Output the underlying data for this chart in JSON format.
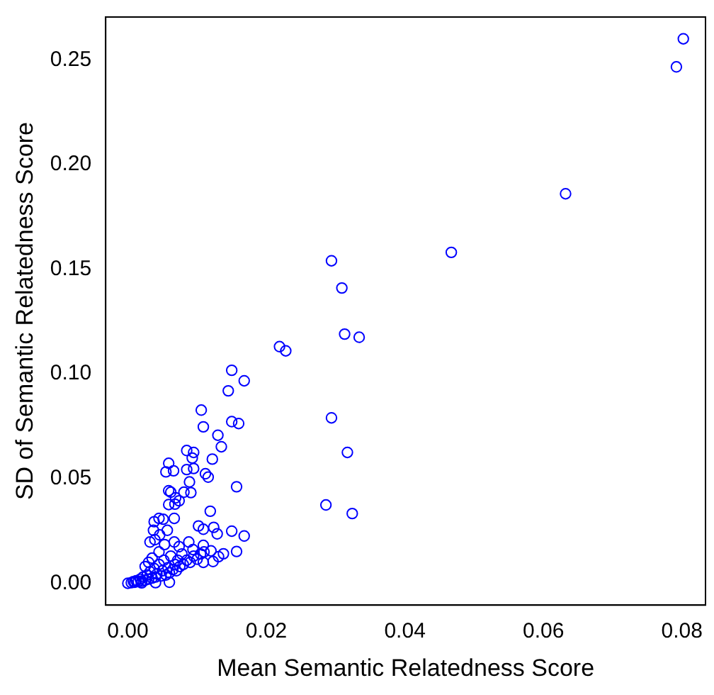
{
  "chart_data": {
    "type": "scatter",
    "xlabel": "Mean Semantic Relatedness Score",
    "ylabel": "SD of Semantic Relatedness Score",
    "marker": "circle",
    "xlim": [
      -0.0032,
      0.0834
    ],
    "ylim": [
      -0.0104,
      0.2704
    ],
    "xticks": [
      {
        "value": 0,
        "label": "0.00"
      },
      {
        "value": 0.02,
        "label": "0.02"
      },
      {
        "value": 0.04,
        "label": "0.04"
      },
      {
        "value": 0.06,
        "label": "0.06"
      },
      {
        "value": 0.08,
        "label": "0.08"
      }
    ],
    "yticks": [
      {
        "value": 0,
        "label": "0.00"
      },
      {
        "value": 0.05,
        "label": "0.05"
      },
      {
        "value": 0.1,
        "label": "0.10"
      },
      {
        "value": 0.15,
        "label": "0.15"
      },
      {
        "value": 0.2,
        "label": "0.20"
      },
      {
        "value": 0.25,
        "label": "0.25"
      }
    ],
    "series": [
      {
        "color": "#0000ff",
        "x": [
          0.0802,
          0.0792,
          0.0632,
          0.0467,
          0.0294,
          0.0309,
          0.0219,
          0.0228,
          0.0313,
          0.0334,
          0.0294,
          0.0317,
          0.0286,
          0.0324,
          0.015,
          0.0168,
          0.0145,
          0.0106,
          0.0109,
          0.015,
          0.016,
          0.013,
          0.0135,
          0.0085,
          0.0095,
          0.0093,
          0.0122,
          0.0059,
          0.0055,
          0.0066,
          0.0085,
          0.0095,
          0.0112,
          0.0116,
          0.0089,
          0.0157,
          0.0059,
          0.0062,
          0.0081,
          0.0091,
          0.0069,
          0.0074,
          0.0059,
          0.0068,
          0.0119,
          0.0045,
          0.0038,
          0.0051,
          0.0067,
          0.0102,
          0.0109,
          0.0124,
          0.0129,
          0.015,
          0.0168,
          0.0157,
          0.0138,
          0.0131,
          0.0123,
          0.0109,
          0.0109,
          0.0088,
          0.0094,
          0.0037,
          0.0046,
          0.0057,
          0.0032,
          0.0039,
          0.0053,
          0.0067,
          0.0074,
          0.0,
          0.0005,
          0.0008,
          0.001,
          0.0012,
          0.0015,
          0.0018,
          0.002,
          0.0022,
          0.0025,
          0.0028,
          0.003,
          0.0032,
          0.0035,
          0.0038,
          0.004,
          0.0042,
          0.0045,
          0.0048,
          0.005,
          0.0052,
          0.0055,
          0.0058,
          0.006,
          0.0062,
          0.0065,
          0.0068,
          0.007,
          0.0072,
          0.0075,
          0.0078,
          0.008,
          0.0085,
          0.009,
          0.0095,
          0.01,
          0.0105,
          0.006,
          0.004,
          0.002,
          0.003,
          0.0025,
          0.0035,
          0.0045,
          0.011,
          0.012
        ],
        "values": [
          0.26,
          0.2466,
          0.186,
          0.158,
          0.154,
          0.141,
          0.113,
          0.111,
          0.119,
          0.1175,
          0.079,
          0.0625,
          0.0374,
          0.0333,
          0.1017,
          0.0967,
          0.0919,
          0.0827,
          0.0747,
          0.0772,
          0.0763,
          0.0707,
          0.0652,
          0.0634,
          0.0625,
          0.0598,
          0.0593,
          0.0573,
          0.0532,
          0.0537,
          0.0543,
          0.0548,
          0.0523,
          0.0507,
          0.0484,
          0.0461,
          0.0442,
          0.0435,
          0.0435,
          0.0433,
          0.0408,
          0.0394,
          0.0376,
          0.0378,
          0.0344,
          0.031,
          0.0294,
          0.0306,
          0.031,
          0.0274,
          0.0258,
          0.0267,
          0.0236,
          0.0249,
          0.0226,
          0.0152,
          0.0141,
          0.0127,
          0.0104,
          0.01,
          0.0181,
          0.0197,
          0.0161,
          0.0253,
          0.0231,
          0.0253,
          0.0197,
          0.0208,
          0.0185,
          0.0197,
          0.0175,
          0.0,
          0.0003,
          0.0008,
          0.0005,
          0.0012,
          0.0008,
          0.002,
          0.001,
          0.003,
          0.0015,
          0.004,
          0.002,
          0.0055,
          0.0025,
          0.007,
          0.003,
          0.0045,
          0.009,
          0.0035,
          0.006,
          0.011,
          0.004,
          0.0075,
          0.005,
          0.013,
          0.0065,
          0.009,
          0.006,
          0.011,
          0.008,
          0.014,
          0.009,
          0.011,
          0.01,
          0.013,
          0.0115,
          0.014,
          0.0005,
          0.0003,
          0.0002,
          0.01,
          0.008,
          0.012,
          0.015,
          0.015,
          0.0155
        ]
      }
    ]
  }
}
